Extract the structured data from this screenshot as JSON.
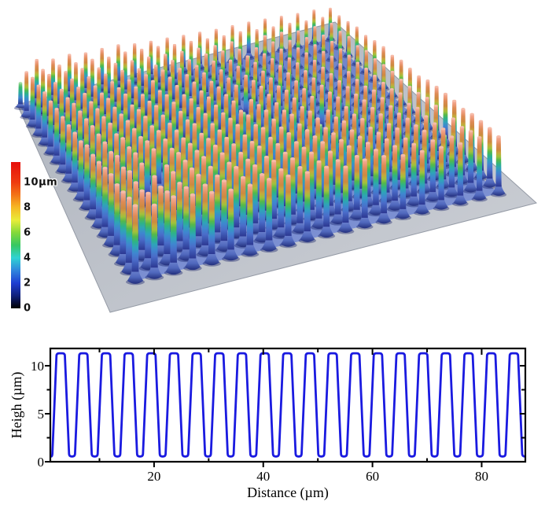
{
  "background": "#ffffff",
  "surface_plot": {
    "grid": {
      "rows": 20,
      "cols": 20
    },
    "plate_color_back": "#adb3bd",
    "plate_color_front": "#cdd0d6",
    "plate_edge_color": "#959ba6",
    "field_color_back": "#6b7fc6",
    "field_color_front": "#7e92d4",
    "pillar_gradient": [
      [
        0.0,
        "#f5b09c"
      ],
      [
        0.07,
        "#ee9d7e"
      ],
      [
        0.16,
        "#de8a55"
      ],
      [
        0.27,
        "#cd8a3f"
      ],
      [
        0.33,
        "#c7a83c"
      ],
      [
        0.4,
        "#9fc23c"
      ],
      [
        0.47,
        "#55b94a"
      ],
      [
        0.55,
        "#2eb387"
      ],
      [
        0.63,
        "#2fa3b9"
      ],
      [
        0.72,
        "#3f86d0"
      ],
      [
        0.82,
        "#4a6cc9"
      ],
      [
        1.0,
        "#2c3892"
      ]
    ],
    "short_pillar_gradient": [
      [
        0.0,
        "#8fd489"
      ],
      [
        0.2,
        "#3db96b"
      ],
      [
        0.45,
        "#2aab9c"
      ],
      [
        0.7,
        "#3e85cf"
      ],
      [
        1.0,
        "#2c3892"
      ]
    ],
    "cone_gradient": [
      [
        0.0,
        "#7287d2"
      ],
      [
        0.55,
        "#5068bd"
      ],
      [
        1.0,
        "#232f7d"
      ]
    ],
    "cap_color": "#f6bba8",
    "short_cap_color": "#9fdca0",
    "shadow_color": "rgba(22,32,105,0.40)"
  },
  "colorbar": {
    "max_value": 11.6,
    "gradient": [
      {
        "v": 0.0,
        "c": "#000000"
      },
      {
        "v": 1.0,
        "c": "#101f7a"
      },
      {
        "v": 2.0,
        "c": "#1e3ed2"
      },
      {
        "v": 3.0,
        "c": "#2f86dd"
      },
      {
        "v": 4.0,
        "c": "#2fd3d3"
      },
      {
        "v": 5.0,
        "c": "#37c763"
      },
      {
        "v": 6.0,
        "c": "#83d93a"
      },
      {
        "v": 7.0,
        "c": "#e9ec39"
      },
      {
        "v": 8.0,
        "c": "#f6b824"
      },
      {
        "v": 9.0,
        "c": "#f37316"
      },
      {
        "v": 10.0,
        "c": "#ee3b10"
      },
      {
        "v": 11.6,
        "c": "#e60f0c"
      }
    ],
    "ticks": [
      {
        "label": "10µm",
        "value": 10
      },
      {
        "label": "8",
        "value": 8
      },
      {
        "label": "6",
        "value": 6
      },
      {
        "label": "4",
        "value": 4
      },
      {
        "label": "2",
        "value": 2
      },
      {
        "label": "0",
        "value": 0
      }
    ]
  },
  "chart_data": {
    "type": "line",
    "title": "",
    "xlabel": "Distance (µm)",
    "ylabel": "Heigh (µm)",
    "x_range": [
      1.0,
      88.0
    ],
    "y_range": [
      0,
      11.8
    ],
    "x_major_ticks": [
      20,
      40,
      60,
      80
    ],
    "x_minor_ticks": [
      10,
      30,
      50,
      70
    ],
    "y_major_ticks": [
      0,
      5,
      10
    ],
    "y_minor_ticks": [
      2.5,
      7.5
    ],
    "grid": false,
    "legend": null,
    "line_color": "#1a1ae0",
    "line_width": 2.8,
    "axis_color": "#000000",
    "waveform": {
      "baseline_um": 0.55,
      "peak_um": 11.3,
      "period_um": 4.15,
      "top_half_width_um": 0.75,
      "base_half_width_um": 1.55,
      "pulse_centers_um": [
        2.9,
        7.05,
        11.2,
        15.35,
        19.5,
        23.65,
        27.8,
        31.95,
        36.1,
        40.25,
        44.4,
        48.55,
        52.7,
        56.85,
        61.0,
        65.15,
        69.3,
        73.45,
        77.6,
        81.75,
        85.9
      ]
    }
  }
}
